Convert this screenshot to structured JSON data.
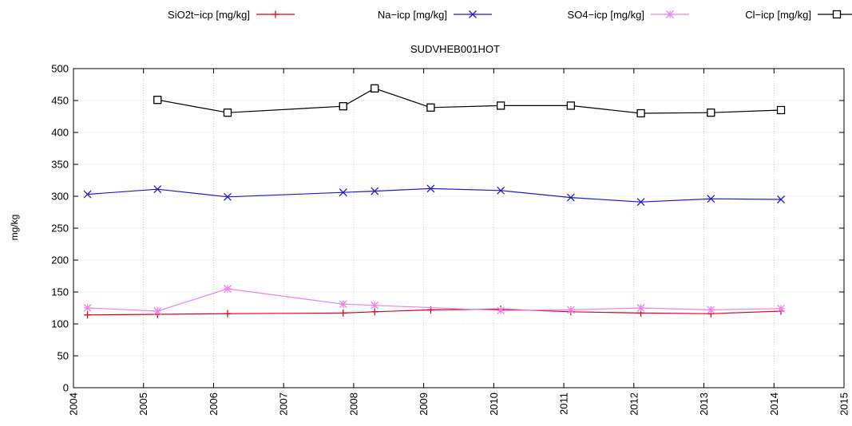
{
  "chart_data": {
    "type": "line",
    "title": "SUDVHEB001HOT",
    "xlabel": "",
    "ylabel": "mg/kg",
    "xlim": [
      2004,
      2015
    ],
    "ylim": [
      0,
      500
    ],
    "x_ticks": [
      "2004",
      "2005",
      "2006",
      "2007",
      "2008",
      "2009",
      "2010",
      "2011",
      "2012",
      "2013",
      "2014",
      "2015"
    ],
    "y_ticks": [
      "0",
      "50",
      "100",
      "150",
      "200",
      "250",
      "300",
      "350",
      "400",
      "450",
      "500"
    ],
    "grid": true,
    "legend_position": "top",
    "series": [
      {
        "name": "SiO2t−icp [mg/kg]",
        "color": "#e8001c",
        "marker": "plus",
        "x": [
          2004.2,
          2005.2,
          2006.2,
          2007.85,
          2008.3,
          2009.1,
          2010.1,
          2011.1,
          2012.1,
          2013.1,
          2014.1
        ],
        "y": [
          114,
          115,
          116,
          117,
          119,
          122,
          123,
          119,
          117,
          116,
          120
        ]
      },
      {
        "name": "Na−icp [mg/kg]",
        "color": "#1c1cd2",
        "marker": "cross",
        "x": [
          2004.2,
          2005.2,
          2006.2,
          2007.85,
          2008.3,
          2009.1,
          2010.1,
          2011.1,
          2012.1,
          2013.1,
          2014.1
        ],
        "y": [
          303,
          311,
          299,
          306,
          308,
          312,
          309,
          298,
          291,
          296,
          295
        ]
      },
      {
        "name": "SO4−icp [mg/kg]",
        "color": "#ee82ee",
        "marker": "star",
        "x": [
          2004.2,
          2005.2,
          2006.2,
          2007.85,
          2008.3,
          2010.1,
          2011.1,
          2012.1,
          2013.1,
          2014.1
        ],
        "y": [
          125,
          120,
          155,
          131,
          129,
          121,
          122,
          125,
          122,
          124
        ]
      },
      {
        "name": "Cl−icp [mg/kg]",
        "color": "#000000",
        "marker": "square",
        "x": [
          2005.2,
          2006.2,
          2007.85,
          2008.3,
          2009.1,
          2010.1,
          2011.1,
          2012.1,
          2013.1,
          2014.1
        ],
        "y": [
          451,
          431,
          441,
          469,
          439,
          442,
          442,
          430,
          431,
          435
        ]
      }
    ]
  }
}
